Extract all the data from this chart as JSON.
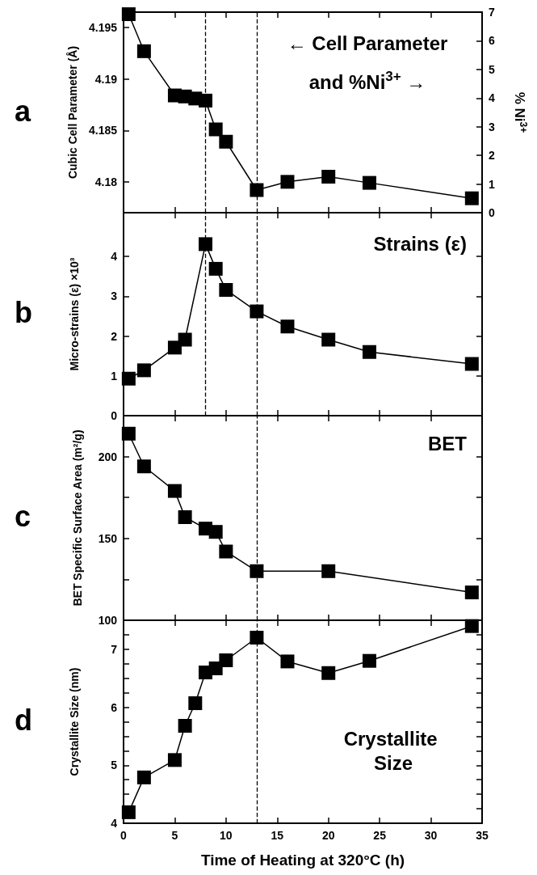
{
  "chart_data": [
    {
      "type": "line",
      "title": "a",
      "ylabel": "Cubic Cell Parameter (Å)",
      "y2label": "% Ni$^{3+}$",
      "annotations": [
        "← Cell Parameter",
        "and %Ni$^{3+}$ →"
      ],
      "xlim": [
        0,
        35
      ],
      "xticks": [
        0,
        5,
        10,
        15,
        20,
        25,
        30,
        35
      ],
      "ylim": [
        4.177,
        4.1965
      ],
      "yticks": [
        4.18,
        4.185,
        4.19,
        4.195
      ],
      "y2lim": [
        0,
        7
      ],
      "y2ticks": [
        0,
        1,
        2,
        3,
        4,
        5,
        6,
        7
      ],
      "tick_labels": "y",
      "marker": "square",
      "line_style": "solid",
      "ref_lines": [
        {
          "axis": "x",
          "value": 8,
          "line_style": "dashed",
          "color": "#000000"
        },
        {
          "axis": "x",
          "value": 13,
          "line_style": "dashed",
          "color": "#000000"
        }
      ],
      "series": [
        {
          "color": "#000000",
          "x": [
            0.5,
            2,
            5,
            6,
            7,
            8,
            9,
            10,
            13,
            16,
            20,
            24,
            34
          ],
          "values": [
            4.1963,
            4.1927,
            4.1884,
            4.1883,
            4.1881,
            4.1879,
            4.1851,
            4.1839,
            4.1792,
            4.18,
            4.1805,
            4.1799,
            4.1784
          ]
        }
      ]
    },
    {
      "type": "line",
      "title": "b",
      "ylabel": "Micro-strains (ε) ×10³",
      "annotations": [
        "Strains (ε)"
      ],
      "xlim": [
        0,
        35
      ],
      "xticks": [
        0,
        5,
        10,
        15,
        20,
        25,
        30,
        35
      ],
      "ylim": [
        0,
        5.1
      ],
      "yticks": [
        0,
        1,
        2,
        3,
        4
      ],
      "tick_labels": "y",
      "marker": "square",
      "line_style": "solid",
      "ref_lines": [
        {
          "axis": "x",
          "value": 8,
          "line_style": "dashed",
          "color": "#000000"
        },
        {
          "axis": "x",
          "value": 13,
          "line_style": "dashed",
          "color": "#000000"
        }
      ],
      "series": [
        {
          "color": "#000000",
          "x": [
            0.5,
            2,
            5,
            6,
            8,
            9,
            10,
            13,
            16,
            20,
            24,
            34
          ],
          "values": [
            0.93,
            1.14,
            1.71,
            1.91,
            4.31,
            3.69,
            3.16,
            2.62,
            2.24,
            1.91,
            1.6,
            1.3
          ]
        }
      ]
    },
    {
      "type": "line",
      "title": "c",
      "ylabel": "BET Specific Surface Area (m²/g)",
      "annotations": [
        "BET"
      ],
      "xlim": [
        0,
        35
      ],
      "xticks": [
        0,
        5,
        10,
        15,
        20,
        25,
        30,
        35
      ],
      "ylim": [
        100,
        225
      ],
      "yticks": [
        100,
        {
          "value": 125,
          "label": null
        },
        150,
        {
          "value": 175,
          "label": null
        },
        200
      ],
      "tick_labels": "y",
      "marker": "square",
      "line_style": "solid",
      "ref_lines": [
        {
          "axis": "x",
          "value": 13,
          "line_style": "dashed",
          "color": "#000000"
        }
      ],
      "series": [
        {
          "color": "#000000",
          "x": [
            0.5,
            2,
            5,
            6,
            8,
            9,
            10,
            13,
            20,
            34
          ],
          "values": [
            214,
            194,
            179,
            163,
            156,
            154,
            142,
            130,
            130,
            117
          ]
        }
      ]
    },
    {
      "type": "line",
      "title": "d",
      "ylabel": "Crystallite Size (nm)",
      "xlabel": "Time of Heating at 320°C (h)",
      "annotations": [
        "Crystallite Size"
      ],
      "xlim": [
        0,
        35
      ],
      "xticks": [
        0,
        5,
        10,
        15,
        20,
        25,
        30,
        35
      ],
      "ylim": [
        4,
        7.5
      ],
      "yticks": [
        4,
        {
          "value": 4.25,
          "label": null
        },
        {
          "value": 4.5,
          "label": null
        },
        {
          "value": 4.75,
          "label": null
        },
        5,
        {
          "value": 5.25,
          "label": null
        },
        {
          "value": 5.5,
          "label": null
        },
        {
          "value": 5.75,
          "label": null
        },
        6,
        {
          "value": 6.25,
          "label": null
        },
        {
          "value": 6.5,
          "label": null
        },
        {
          "value": 6.75,
          "label": null
        },
        7,
        {
          "value": 7.25,
          "label": null
        }
      ],
      "marker": "square",
      "line_style": "solid",
      "ref_lines": [
        {
          "axis": "x",
          "value": 13,
          "line_style": "dashed",
          "color": "#000000"
        }
      ],
      "series": [
        {
          "color": "#000000",
          "x": [
            0.5,
            2,
            5,
            6,
            7,
            8,
            9,
            10,
            13,
            16,
            20,
            24,
            34
          ],
          "values": [
            4.19,
            4.79,
            5.09,
            5.68,
            6.07,
            6.6,
            6.67,
            6.81,
            7.2,
            6.79,
            6.59,
            6.8,
            7.4
          ]
        }
      ]
    }
  ]
}
